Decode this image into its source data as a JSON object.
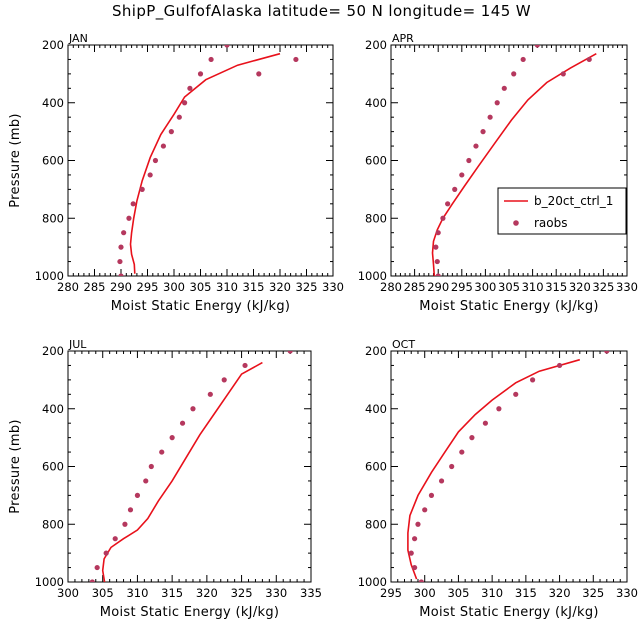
{
  "figure": {
    "title": "ShipP_GulfofAlaska  latitude= 50 N longitude= 145 W"
  },
  "legend": {
    "placement": "right-middle of APR panel",
    "entries": [
      {
        "label": "b_20ct_ctrl_1",
        "kind": "line",
        "color": "#e8111b"
      },
      {
        "label": "raobs",
        "kind": "marker",
        "color": "#b5385e"
      }
    ]
  },
  "colors": {
    "model_line": "#e8111b",
    "raobs_marker": "#b5385e",
    "axes": "#000000"
  },
  "chart_data": [
    {
      "type": "line",
      "panel": "JAN",
      "xlabel": "Moist Static Energy (kJ/kg)",
      "ylabel": "Pressure (mb)",
      "xlim": [
        280,
        330
      ],
      "ylim": [
        1000,
        200
      ],
      "y_inverted": true,
      "xticks": [
        280,
        285,
        290,
        295,
        300,
        305,
        310,
        315,
        320,
        325,
        330
      ],
      "yticks": [
        200,
        400,
        600,
        800,
        1000
      ],
      "series": [
        {
          "name": "b_20ct_ctrl_1",
          "kind": "line",
          "x": [
            292.6,
            292.5,
            292.0,
            291.8,
            292.0,
            292.4,
            293.0,
            294.0,
            295.5,
            297.5,
            300.0,
            302.0,
            306.0,
            312.0,
            320.0
          ],
          "y": [
            992,
            960,
            925,
            890,
            850,
            800,
            740,
            670,
            590,
            510,
            440,
            380,
            320,
            270,
            230
          ]
        },
        {
          "name": "raobs",
          "kind": "marker",
          "x": [
            290.0,
            289.8,
            290.0,
            290.5,
            291.5,
            292.3,
            294.0,
            295.5,
            296.5,
            298.0,
            299.5,
            301.0,
            302.0,
            303.0,
            305.0,
            307.0,
            310.0,
            316.0,
            323.0
          ],
          "y": [
            1000,
            950,
            900,
            850,
            800,
            750,
            700,
            650,
            600,
            550,
            500,
            450,
            400,
            350,
            300,
            250,
            200,
            300,
            250
          ]
        }
      ]
    },
    {
      "type": "line",
      "panel": "APR",
      "xlabel": "Moist Static Energy (kJ/kg)",
      "ylabel": "",
      "xlim": [
        280,
        330
      ],
      "ylim": [
        1000,
        200
      ],
      "y_inverted": true,
      "xticks": [
        280,
        285,
        290,
        295,
        300,
        305,
        310,
        315,
        320,
        325,
        330
      ],
      "yticks": [
        200,
        400,
        600,
        800,
        1000
      ],
      "series": [
        {
          "name": "b_20ct_ctrl_1",
          "kind": "line",
          "x": [
            289.2,
            289.0,
            288.8,
            289.0,
            289.8,
            291.0,
            293.0,
            295.5,
            298.5,
            302.0,
            305.5,
            309.0,
            313.0,
            318.0,
            323.5
          ],
          "y": [
            1005,
            960,
            920,
            880,
            840,
            800,
            750,
            690,
            620,
            540,
            460,
            390,
            330,
            280,
            230
          ]
        },
        {
          "name": "raobs",
          "kind": "marker",
          "x": [
            290.0,
            289.8,
            289.5,
            290.0,
            291.0,
            292.0,
            293.5,
            295.0,
            296.5,
            298.0,
            299.5,
            301.0,
            302.5,
            304.0,
            306.0,
            308.0,
            311.0,
            316.5,
            322.0
          ],
          "y": [
            1000,
            950,
            900,
            850,
            800,
            750,
            700,
            650,
            600,
            550,
            500,
            450,
            400,
            350,
            300,
            250,
            200,
            300,
            250
          ]
        }
      ]
    },
    {
      "type": "line",
      "panel": "JUL",
      "xlabel": "Moist Static Energy (kJ/kg)",
      "ylabel": "Pressure (mb)",
      "xlim": [
        300,
        335
      ],
      "ylim": [
        1000,
        200
      ],
      "y_inverted": true,
      "xticks": [
        300,
        305,
        310,
        315,
        320,
        325,
        330,
        335
      ],
      "yticks": [
        200,
        400,
        600,
        800,
        1000
      ],
      "series": [
        {
          "name": "b_20ct_ctrl_1",
          "kind": "line",
          "x": [
            305.3,
            305.0,
            305.2,
            306.2,
            308.0,
            310.0,
            311.5,
            313.0,
            315.0,
            317.0,
            319.0,
            321.0,
            323.0,
            325.0,
            328.0
          ],
          "y": [
            1005,
            960,
            920,
            880,
            850,
            820,
            780,
            720,
            650,
            570,
            490,
            420,
            350,
            280,
            240
          ]
        },
        {
          "name": "raobs",
          "kind": "marker",
          "x": [
            303.5,
            304.2,
            305.5,
            306.8,
            308.2,
            309.0,
            310.0,
            311.2,
            312.0,
            313.5,
            315.0,
            316.5,
            318.0,
            320.5,
            322.5,
            325.5,
            332.0
          ],
          "y": [
            1000,
            950,
            900,
            850,
            800,
            750,
            700,
            650,
            600,
            550,
            500,
            450,
            400,
            350,
            300,
            250,
            200
          ]
        }
      ]
    },
    {
      "type": "line",
      "panel": "OCT",
      "xlabel": "Moist Static Energy (kJ/kg)",
      "ylabel": "",
      "xlim": [
        295,
        330
      ],
      "ylim": [
        1000,
        200
      ],
      "y_inverted": true,
      "xticks": [
        295,
        300,
        305,
        310,
        315,
        320,
        325,
        330
      ],
      "yticks": [
        200,
        400,
        600,
        800,
        1000
      ],
      "series": [
        {
          "name": "b_20ct_ctrl_1",
          "kind": "line",
          "x": [
            298.8,
            298.0,
            297.5,
            297.5,
            297.8,
            299.0,
            301.0,
            303.0,
            305.0,
            307.5,
            310.0,
            313.5,
            317.0,
            323.0
          ],
          "y": [
            990,
            940,
            890,
            830,
            770,
            700,
            620,
            550,
            480,
            420,
            370,
            310,
            270,
            230
          ]
        },
        {
          "name": "raobs",
          "kind": "marker",
          "x": [
            299.5,
            298.5,
            298.0,
            298.5,
            299.0,
            300.0,
            301.0,
            302.5,
            304.0,
            305.5,
            307.0,
            309.0,
            311.0,
            313.5,
            316.0,
            320.0,
            327.0
          ],
          "y": [
            1000,
            950,
            900,
            850,
            800,
            750,
            700,
            650,
            600,
            550,
            500,
            450,
            400,
            350,
            300,
            250,
            200
          ]
        }
      ]
    }
  ]
}
